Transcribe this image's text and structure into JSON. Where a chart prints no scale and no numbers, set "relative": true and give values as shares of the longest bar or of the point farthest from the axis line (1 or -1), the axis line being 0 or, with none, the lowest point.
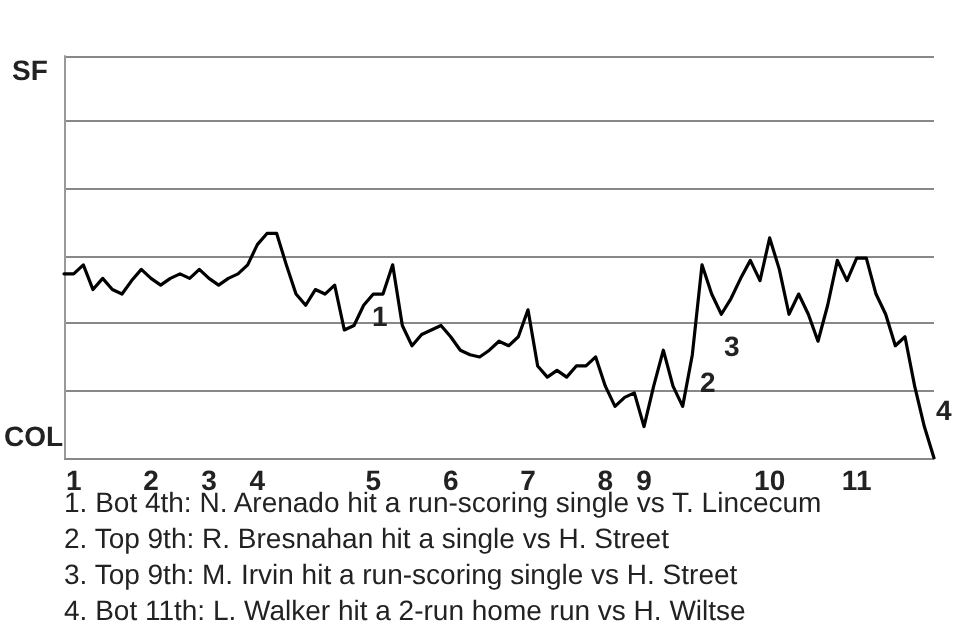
{
  "chart_data": {
    "type": "line",
    "relative": true,
    "categories": [
      null,
      "1",
      null,
      null,
      null,
      null,
      null,
      null,
      null,
      "2",
      null,
      null,
      null,
      null,
      null,
      "3",
      null,
      null,
      null,
      null,
      "4",
      null,
      null,
      null,
      null,
      null,
      null,
      null,
      null,
      null,
      null,
      null,
      "5",
      null,
      null,
      null,
      null,
      null,
      null,
      null,
      "6",
      null,
      null,
      null,
      null,
      null,
      null,
      null,
      "7",
      null,
      null,
      null,
      null,
      null,
      null,
      null,
      "8",
      null,
      null,
      null,
      "9",
      null,
      null,
      null,
      null,
      null,
      null,
      null,
      null,
      null,
      null,
      null,
      null,
      "10",
      null,
      null,
      null,
      null,
      null,
      null,
      null,
      null,
      "11",
      null,
      null,
      null,
      null,
      null,
      null,
      null,
      null
    ],
    "series": [
      {
        "color": "#000000",
        "values": [
          0.82,
          0.82,
          0.86,
          0.75,
          0.8,
          0.75,
          0.73,
          0.79,
          0.84,
          0.8,
          0.77,
          0.8,
          0.82,
          0.8,
          0.84,
          0.8,
          0.77,
          0.8,
          0.82,
          0.86,
          0.95,
          1,
          1,
          0.86,
          0.73,
          0.68,
          0.75,
          0.73,
          0.77,
          0.57,
          0.59,
          0.68,
          0.73,
          0.73,
          0.86,
          0.59,
          0.5,
          0.55,
          0.57,
          0.59,
          0.54,
          0.48,
          0.46,
          0.45,
          0.48,
          0.52,
          0.5,
          0.54,
          0.66,
          0.41,
          0.36,
          0.39,
          0.36,
          0.41,
          0.41,
          0.45,
          0.32,
          0.23,
          0.27,
          0.29,
          0.14,
          0.32,
          0.48,
          0.32,
          0.23,
          0.46,
          0.86,
          0.73,
          0.64,
          0.71,
          0.8,
          0.88,
          0.79,
          0.98,
          0.84,
          0.64,
          0.73,
          0.64,
          0.52,
          0.68,
          0.88,
          0.79,
          0.89,
          0.89,
          0.73,
          0.64,
          0.5,
          0.54,
          0.32,
          0.14,
          0
        ]
      }
    ],
    "grid": "y",
    "annotations": [
      "SF",
      "COL",
      "1",
      "2",
      "3",
      "4",
      "1. Bot 4th: N. Arenado hit a run-scoring single vs T. Lincecum",
      "2. Top 9th: R. Bresnahan hit a single vs H. Street",
      "3. Top 9th: M. Irvin hit a run-scoring single vs H. Street",
      "4. Bot 11th: L. Walker hit a 2-run home run vs H. Wiltse"
    ],
    "line_style": "solid"
  }
}
